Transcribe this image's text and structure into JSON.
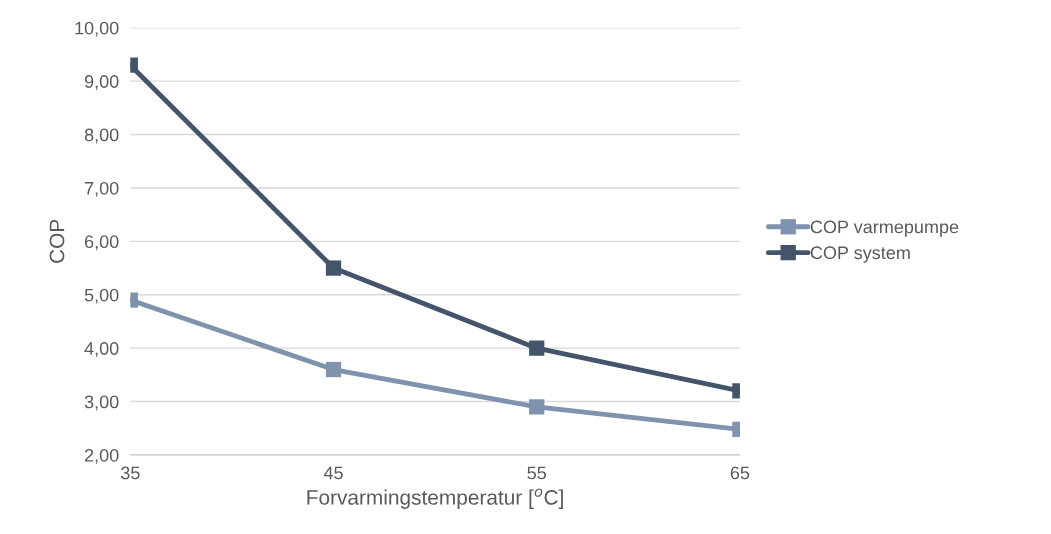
{
  "chart_data": {
    "type": "line",
    "xlabel": "Forvarmingstemperatur [$^{o}$C]",
    "ylabel": "COP",
    "categories": [
      "35",
      "45",
      "55",
      "65"
    ],
    "series": [
      {
        "name": "COP varmepumpe",
        "color": "#7f93ae",
        "values": [
          4.9,
          3.6,
          2.9,
          2.48
        ]
      },
      {
        "name": "COP system",
        "color": "#44546a",
        "values": [
          9.3,
          5.5,
          4.0,
          3.2
        ]
      }
    ],
    "ylim": [
      2,
      10
    ],
    "yticks": [
      {
        "value": 2,
        "label": "2,00"
      },
      {
        "value": 3,
        "label": "3,00"
      },
      {
        "value": 4,
        "label": "4,00"
      },
      {
        "value": 5,
        "label": "5,00"
      },
      {
        "value": 6,
        "label": "6,00"
      },
      {
        "value": 7,
        "label": "7,00"
      },
      {
        "value": 8,
        "label": "8,00"
      },
      {
        "value": 9,
        "label": "9,00"
      },
      {
        "value": 10,
        "label": "10,00"
      }
    ],
    "grid": "y",
    "legend": "right",
    "marker": "square",
    "line_style": "solid"
  }
}
